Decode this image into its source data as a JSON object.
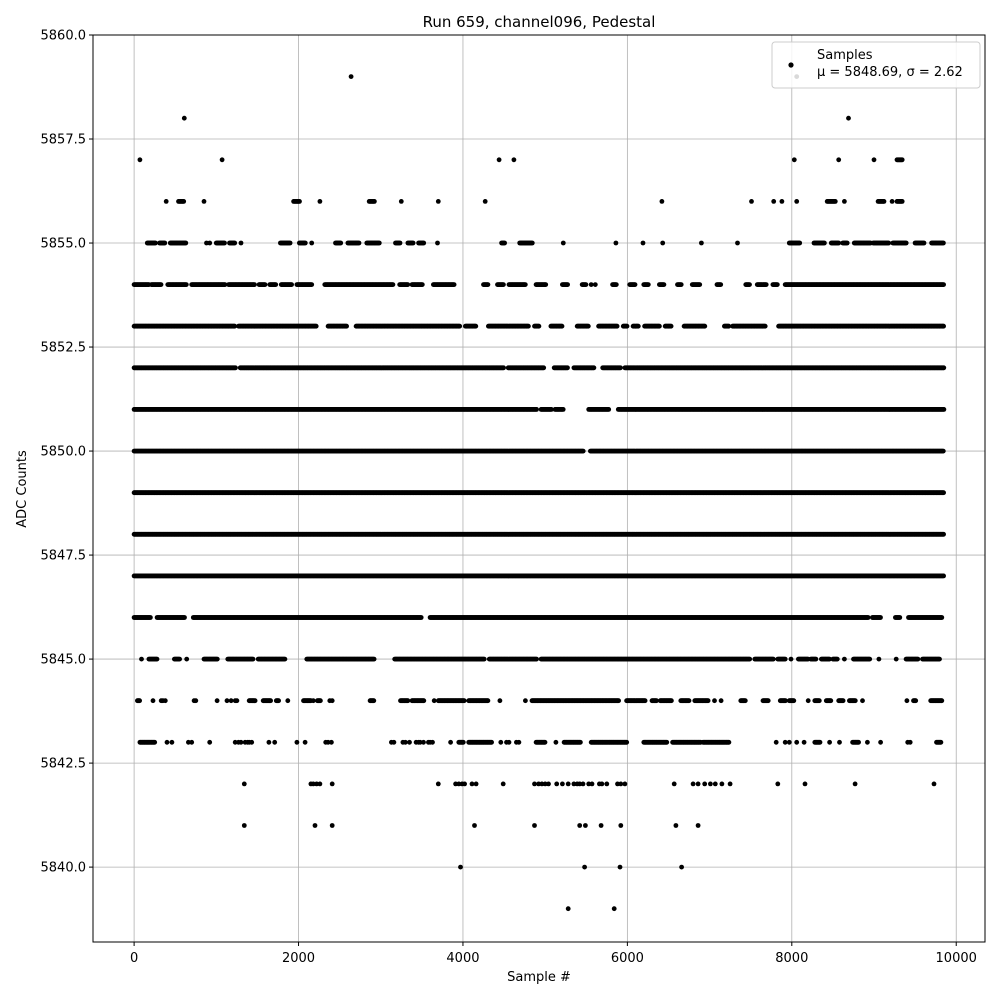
{
  "chart_data": {
    "type": "scatter",
    "title": "Run 659, channel096, Pedestal",
    "xlabel": "Sample #",
    "ylabel": "ADC Counts",
    "xlim": [
      -500,
      10350
    ],
    "ylim": [
      5838.2,
      5860.0
    ],
    "xticks": [
      0,
      2000,
      4000,
      6000,
      8000,
      10000
    ],
    "yticks": [
      5840.0,
      5842.5,
      5845.0,
      5847.5,
      5850.0,
      5852.5,
      5855.0,
      5857.5,
      5860.0
    ],
    "grid": true,
    "legend_position": "top-right",
    "series": [
      {
        "name": "Samples",
        "color": "#000000",
        "marker": "circle",
        "n_samples": 9840,
        "mean": 5848.69,
        "std": 2.62,
        "levels": [
          {
            "y": 5839,
            "x": [
              5280,
              5840
            ]
          },
          {
            "y": 5840,
            "x": [
              3970,
              5480,
              5910,
              6660
            ]
          },
          {
            "y": 5841,
            "x": [
              1340,
              2200,
              2410,
              4140,
              4870,
              5420,
              5490,
              5680,
              5920,
              6590,
              6860
            ]
          },
          {
            "y": 5842,
            "x": [
              1340,
              2150,
              2180,
              2220,
              2260,
              2410,
              3700,
              3910,
              3950,
              3990,
              4020,
              4110,
              4160,
              4490,
              4870,
              4920,
              4960,
              5000,
              5040,
              5140,
              5210,
              5280,
              5350,
              5390,
              5420,
              5460,
              5530,
              5570,
              5660,
              5690,
              5750,
              5880,
              5920,
              5970,
              6570,
              6800,
              6860,
              6940,
              7010,
              7070,
              7150,
              7250,
              7830,
              8160,
              8770,
              9730
            ]
          },
          {
            "y": 5843,
            "x": [
              [
                70,
                250
              ],
              400,
              460,
              660,
              700,
              920,
              1230,
              1270,
              1300,
              1350,
              1380,
              1400,
              1430,
              1640,
              1710,
              1980,
              2080,
              2330,
              2360,
              2400,
              3130,
              3160,
              3270,
              3300,
              3350,
              3430,
              3460,
              3480,
              3520,
              3580,
              3600,
              3630,
              3850,
              [
                3950,
                4010
              ],
              [
                4070,
                4350
              ],
              4460,
              4530,
              4560,
              4650,
              4680,
              [
                4890,
                5000
              ],
              5130,
              [
                5230,
                5430
              ],
              [
                5560,
                6000
              ],
              [
                6200,
                6480
              ],
              [
                6550,
                6900
              ],
              [
                6920,
                7240
              ],
              7810,
              7920,
              7970,
              8060,
              8150,
              [
                8280,
                8350
              ],
              8460,
              8580,
              [
                8740,
                8820
              ],
              8920,
              9080,
              9410,
              9440,
              [
                9760,
                9820
              ]
            ]
          },
          {
            "y": 5844,
            "x": [
              [
                40,
                70
              ],
              230,
              330,
              350,
              380,
              730,
              750,
              1010,
              1130,
              1180,
              1230,
              1250,
              [
                1400,
                1480
              ],
              [
                1570,
                1660
              ],
              [
                1730,
                1760
              ],
              1870,
              [
                2060,
                2150
              ],
              2180,
              [
                2230,
                2270
              ],
              2380,
              2410,
              [
                2870,
                2920
              ],
              [
                3240,
                3330
              ],
              [
                3380,
                3530
              ],
              3650,
              [
                3700,
                4020
              ],
              [
                4070,
                4310
              ],
              4450,
              4760,
              [
                4840,
                5900
              ],
              [
                5990,
                6220
              ],
              [
                6300,
                6360
              ],
              [
                6400,
                6540
              ],
              [
                6650,
                6750
              ],
              [
                6820,
                6990
              ],
              7060,
              7140,
              [
                7380,
                7440
              ],
              [
                7650,
                7720
              ],
              [
                7860,
                7930
              ],
              [
                7970,
                8030
              ],
              8200,
              [
                8280,
                8340
              ],
              [
                8420,
                8480
              ],
              [
                8570,
                8630
              ],
              [
                8700,
                8780
              ],
              8860,
              9400,
              [
                9480,
                9510
              ],
              [
                9690,
                9830
              ]
            ]
          },
          {
            "y": 5845,
            "x": [
              90,
              [
                180,
                280
              ],
              [
                490,
                560
              ],
              640,
              [
                850,
                1020
              ],
              [
                1140,
                1450
              ],
              [
                1510,
                1840
              ],
              [
                2100,
                2920
              ],
              [
                3170,
                4260
              ],
              [
                4320,
                4900
              ],
              [
                4950,
                7490
              ],
              [
                7550,
                7780
              ],
              [
                7830,
                7920
              ],
              7990,
              [
                8080,
                8200
              ],
              [
                8230,
                8300
              ],
              [
                8360,
                8460
              ],
              [
                8500,
                8560
              ],
              8640,
              [
                8750,
                8950
              ],
              9060,
              9270,
              [
                9390,
                9540
              ],
              [
                9590,
                9800
              ]
            ]
          },
          {
            "y": 5846,
            "x": [
              [
                0,
                200
              ],
              [
                280,
                620
              ],
              [
                720,
                3500
              ],
              [
                3600,
                8930
              ],
              [
                8980,
                9080
              ],
              [
                9260,
                9320
              ],
              [
                9420,
                9830
              ]
            ]
          },
          {
            "y": 5847,
            "x": [
              [
                0,
                9850
              ]
            ]
          },
          {
            "y": 5848,
            "x": [
              [
                0,
                9850
              ]
            ]
          },
          {
            "y": 5849,
            "x": [
              [
                0,
                9850
              ]
            ]
          },
          {
            "y": 5850,
            "x": [
              [
                0,
                5470
              ],
              [
                5550,
                9850
              ]
            ]
          },
          {
            "y": 5851,
            "x": [
              [
                0,
                4900
              ],
              [
                4950,
                5080
              ],
              [
                5120,
                5220
              ],
              [
                5530,
                5780
              ],
              [
                5890,
                9850
              ]
            ]
          },
          {
            "y": 5852,
            "x": [
              [
                0,
                1240
              ],
              [
                1290,
                4500
              ],
              [
                4550,
                4990
              ],
              [
                5110,
                5280
              ],
              [
                5350,
                5600
              ],
              [
                5700,
                5920
              ],
              [
                5970,
                9850
              ]
            ]
          },
          {
            "y": 5853,
            "x": [
              [
                0,
                1230
              ],
              [
                1270,
                2220
              ],
              [
                2360,
                2590
              ],
              [
                2700,
                3960
              ],
              [
                4030,
                4160
              ],
              [
                4310,
                4800
              ],
              [
                4870,
                4930
              ],
              [
                5070,
                5210
              ],
              [
                5390,
                5530
              ],
              [
                5650,
                5880
              ],
              [
                5950,
                6000
              ],
              [
                6070,
                6140
              ],
              [
                6210,
                6390
              ],
              [
                6460,
                6540
              ],
              [
                6690,
                6950
              ],
              [
                7180,
                7240
              ],
              [
                7280,
                7680
              ],
              [
                7840,
                9850
              ]
            ]
          },
          {
            "y": 5854,
            "x": [
              [
                0,
                180
              ],
              [
                210,
                330
              ],
              [
                410,
                640
              ],
              [
                700,
                1110
              ],
              [
                1150,
                1470
              ],
              [
                1520,
                1600
              ],
              [
                1650,
                1730
              ],
              [
                1790,
                1920
              ],
              [
                1980,
                2160
              ],
              [
                2320,
                3150
              ],
              [
                3230,
                3330
              ],
              [
                3380,
                3510
              ],
              [
                3640,
                3900
              ],
              [
                4250,
                4310
              ],
              [
                4420,
                4500
              ],
              [
                4560,
                4760
              ],
              [
                4890,
                5010
              ],
              [
                5210,
                5280
              ],
              [
                5450,
                5500
              ],
              5560,
              5610,
              [
                5820,
                5870
              ],
              [
                6030,
                6100
              ],
              [
                6200,
                6260
              ],
              [
                6390,
                6450
              ],
              [
                6610,
                6660
              ],
              [
                6790,
                6880
              ],
              [
                7090,
                7140
              ],
              [
                7440,
                7490
              ],
              [
                7580,
                7690
              ],
              [
                7770,
                7830
              ],
              [
                7920,
                9850
              ]
            ]
          },
          {
            "y": 5855,
            "x": [
              [
                160,
                260
              ],
              [
                310,
                380
              ],
              [
                440,
                630
              ],
              880,
              920,
              [
                1000,
                1100
              ],
              [
                1160,
                1230
              ],
              1300,
              [
                1780,
                1900
              ],
              [
                2010,
                2090
              ],
              2160,
              [
                2450,
                2520
              ],
              [
                2600,
                2740
              ],
              [
                2830,
                2990
              ],
              [
                3180,
                3240
              ],
              [
                3330,
                3400
              ],
              [
                3460,
                3530
              ],
              3690,
              [
                4470,
                4510
              ],
              [
                4690,
                4850
              ],
              5220,
              5860,
              6190,
              6430,
              6900,
              7340,
              [
                7970,
                8100
              ],
              [
                8270,
                8400
              ],
              [
                8480,
                8570
              ],
              [
                8620,
                8680
              ],
              [
                8760,
                8960
              ],
              [
                8990,
                9180
              ],
              [
                9230,
                9400
              ],
              [
                9500,
                9610
              ],
              [
                9700,
                9850
              ]
            ]
          },
          {
            "y": 5856,
            "x": [
              390,
              [
                540,
                610
              ],
              850,
              [
                1940,
                2020
              ],
              2260,
              [
                2860,
                2930
              ],
              3250,
              3700,
              4270,
              6420,
              7510,
              7780,
              7880,
              8060,
              [
                8430,
                8530
              ],
              8640,
              [
                9050,
                9130
              ],
              9220,
              [
                9280,
                9350
              ]
            ]
          },
          {
            "y": 5857,
            "x": [
              70,
              1070,
              4440,
              4620,
              8030,
              8570,
              9000,
              [
                9280,
                9350
              ]
            ]
          },
          {
            "y": 5858,
            "x": [
              610,
              8690
            ]
          },
          {
            "y": 5859,
            "x": [
              2640,
              8060
            ]
          }
        ]
      }
    ],
    "legend": {
      "label": "Samples",
      "stats": "μ = 5848.69, σ = 2.62"
    }
  }
}
